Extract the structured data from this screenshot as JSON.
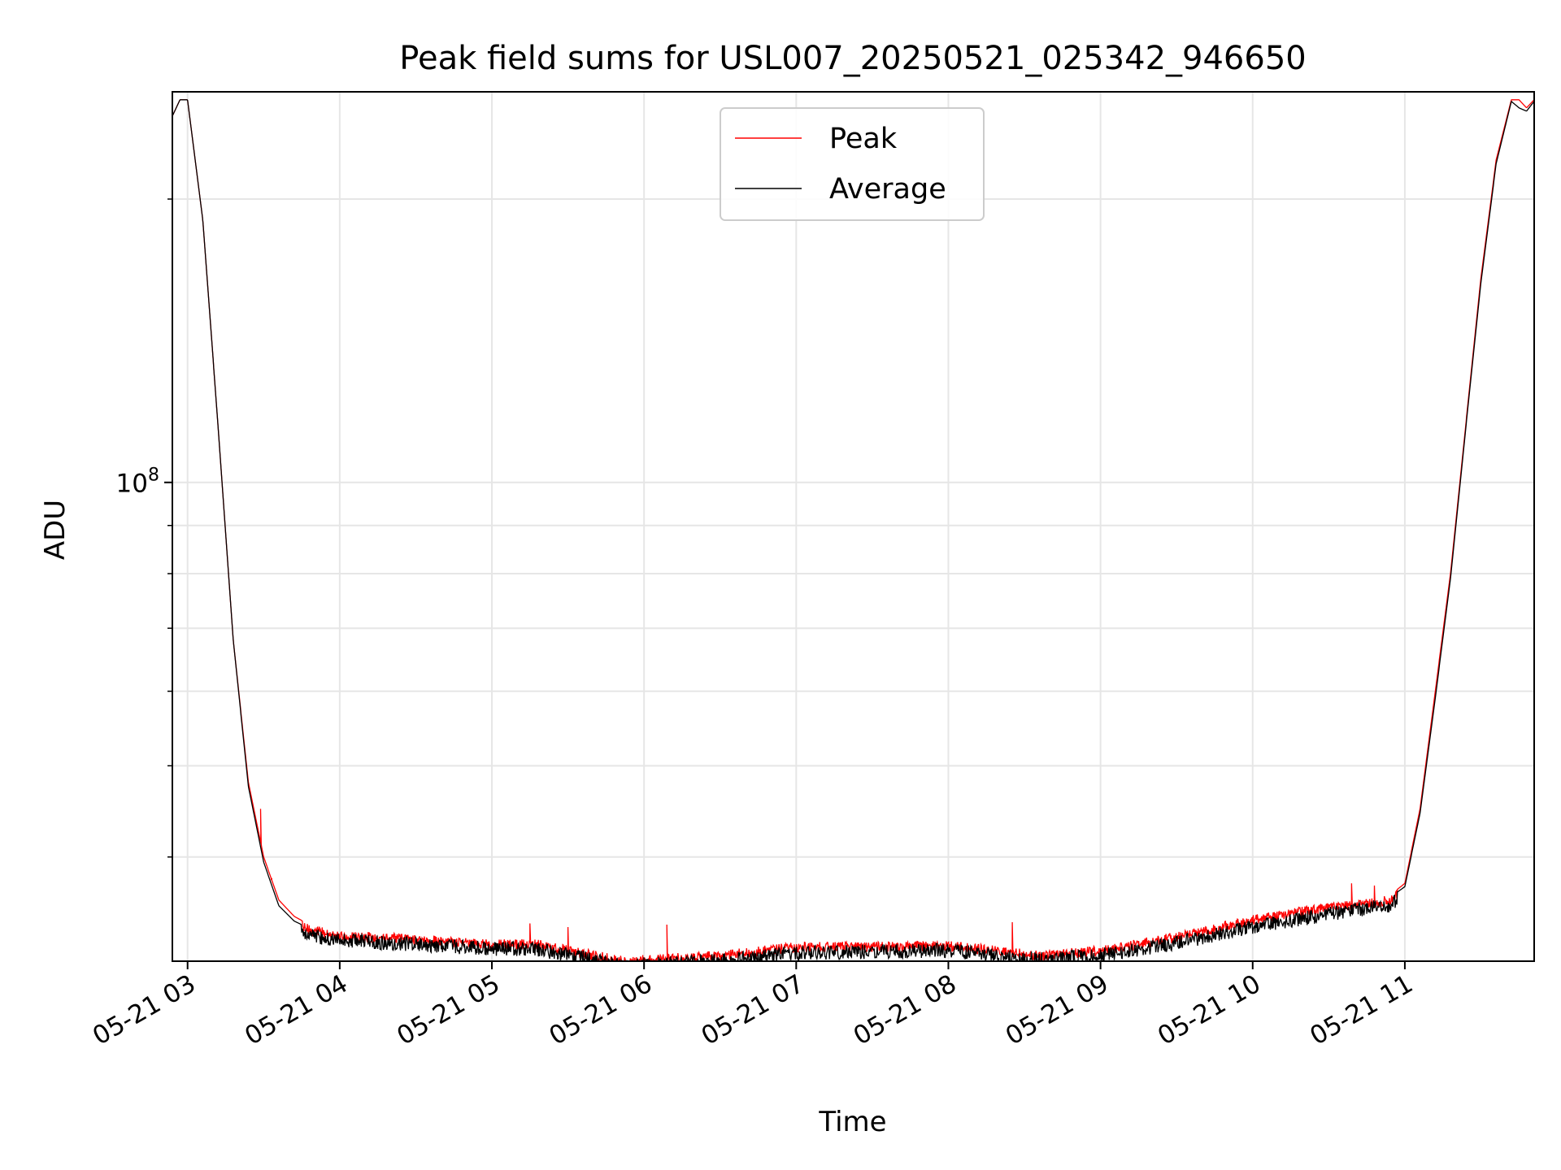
{
  "chart_data": {
    "type": "line",
    "title": "Peak field sums for USL007_20250521_025342_946650",
    "xlabel": "Time",
    "ylabel": "ADU",
    "yscale": "log",
    "ylim": [
      31000000,
      260000000
    ],
    "xlim_hours": [
      2.9,
      11.85
    ],
    "grid": true,
    "legend_position": "upper center",
    "y_major_tick": {
      "value": 100000000,
      "label_base": "10",
      "label_exp": "8"
    },
    "y_minor_ticks": [
      40000000,
      50000000,
      60000000,
      70000000,
      80000000,
      90000000,
      200000000
    ],
    "x_ticks": [
      {
        "hour": 3,
        "label": "05-21 03"
      },
      {
        "hour": 4,
        "label": "05-21 04"
      },
      {
        "hour": 5,
        "label": "05-21 05"
      },
      {
        "hour": 6,
        "label": "05-21 06"
      },
      {
        "hour": 7,
        "label": "05-21 07"
      },
      {
        "hour": 8,
        "label": "05-21 08"
      },
      {
        "hour": 9,
        "label": "05-21 09"
      },
      {
        "hour": 10,
        "label": "05-21 10"
      },
      {
        "hour": 11,
        "label": "05-21 11"
      }
    ],
    "series": [
      {
        "name": "Peak",
        "color": "#ff0000",
        "envelope": {
          "x_hours": [
            2.9,
            2.95,
            3.0,
            3.1,
            3.2,
            3.3,
            3.4,
            3.5,
            3.6,
            3.7,
            3.8,
            4.0,
            4.5,
            5.0,
            5.3,
            5.6,
            5.9,
            6.0,
            6.5,
            7.0,
            7.5,
            8.0,
            8.3,
            8.6,
            9.0,
            9.5,
            10.0,
            10.5,
            10.9,
            11.0,
            11.1,
            11.2,
            11.3,
            11.4,
            11.5,
            11.6,
            11.7,
            11.75,
            11.8,
            11.85
          ],
          "values": [
            245000000,
            255000000,
            255000000,
            190000000,
            115000000,
            68000000,
            48000000,
            40000000,
            36000000,
            34600000,
            33900000,
            33400000,
            33100000,
            32700000,
            32700000,
            32000000,
            31300000,
            31500000,
            31800000,
            32500000,
            32500000,
            32600000,
            32200000,
            31800000,
            32200000,
            33300000,
            34700000,
            35800000,
            36400000,
            37500000,
            45000000,
            60000000,
            80000000,
            115000000,
            165000000,
            220000000,
            255000000,
            255000000,
            250000000,
            255000000
          ]
        },
        "noise_amplitude_rel": 0.025,
        "spikes": [
          [
            5.25,
            34000000
          ],
          [
            5.5,
            33700000
          ],
          [
            6.15,
            33900000
          ],
          [
            8.42,
            34100000
          ],
          [
            10.65,
            37500000
          ],
          [
            10.8,
            37300000
          ],
          [
            3.48,
            45000000
          ],
          [
            3.55,
            37800000
          ]
        ]
      },
      {
        "name": "Average",
        "color": "#000000",
        "envelope": {
          "x_hours": [
            2.9,
            2.95,
            3.0,
            3.1,
            3.2,
            3.3,
            3.4,
            3.5,
            3.6,
            3.7,
            3.8,
            4.0,
            4.5,
            5.0,
            5.3,
            5.6,
            5.9,
            6.0,
            6.5,
            7.0,
            7.5,
            8.0,
            8.3,
            8.6,
            9.0,
            9.5,
            10.0,
            10.5,
            10.9,
            11.0,
            11.1,
            11.2,
            11.3,
            11.4,
            11.5,
            11.6,
            11.7,
            11.75,
            11.8,
            11.85
          ],
          "values": [
            245000000,
            255000000,
            255000000,
            190000000,
            115000000,
            68000000,
            47500000,
            39500000,
            35500000,
            34200000,
            33600000,
            33200000,
            32900000,
            32500000,
            32500000,
            31800000,
            31100000,
            31300000,
            31600000,
            32200000,
            32300000,
            32400000,
            32000000,
            31700000,
            32000000,
            33000000,
            34300000,
            35400000,
            36200000,
            37200000,
            44500000,
            59000000,
            79000000,
            114000000,
            163000000,
            218000000,
            254000000,
            250000000,
            248000000,
            254000000
          ]
        },
        "noise_amplitude_rel": 0.035
      }
    ]
  }
}
